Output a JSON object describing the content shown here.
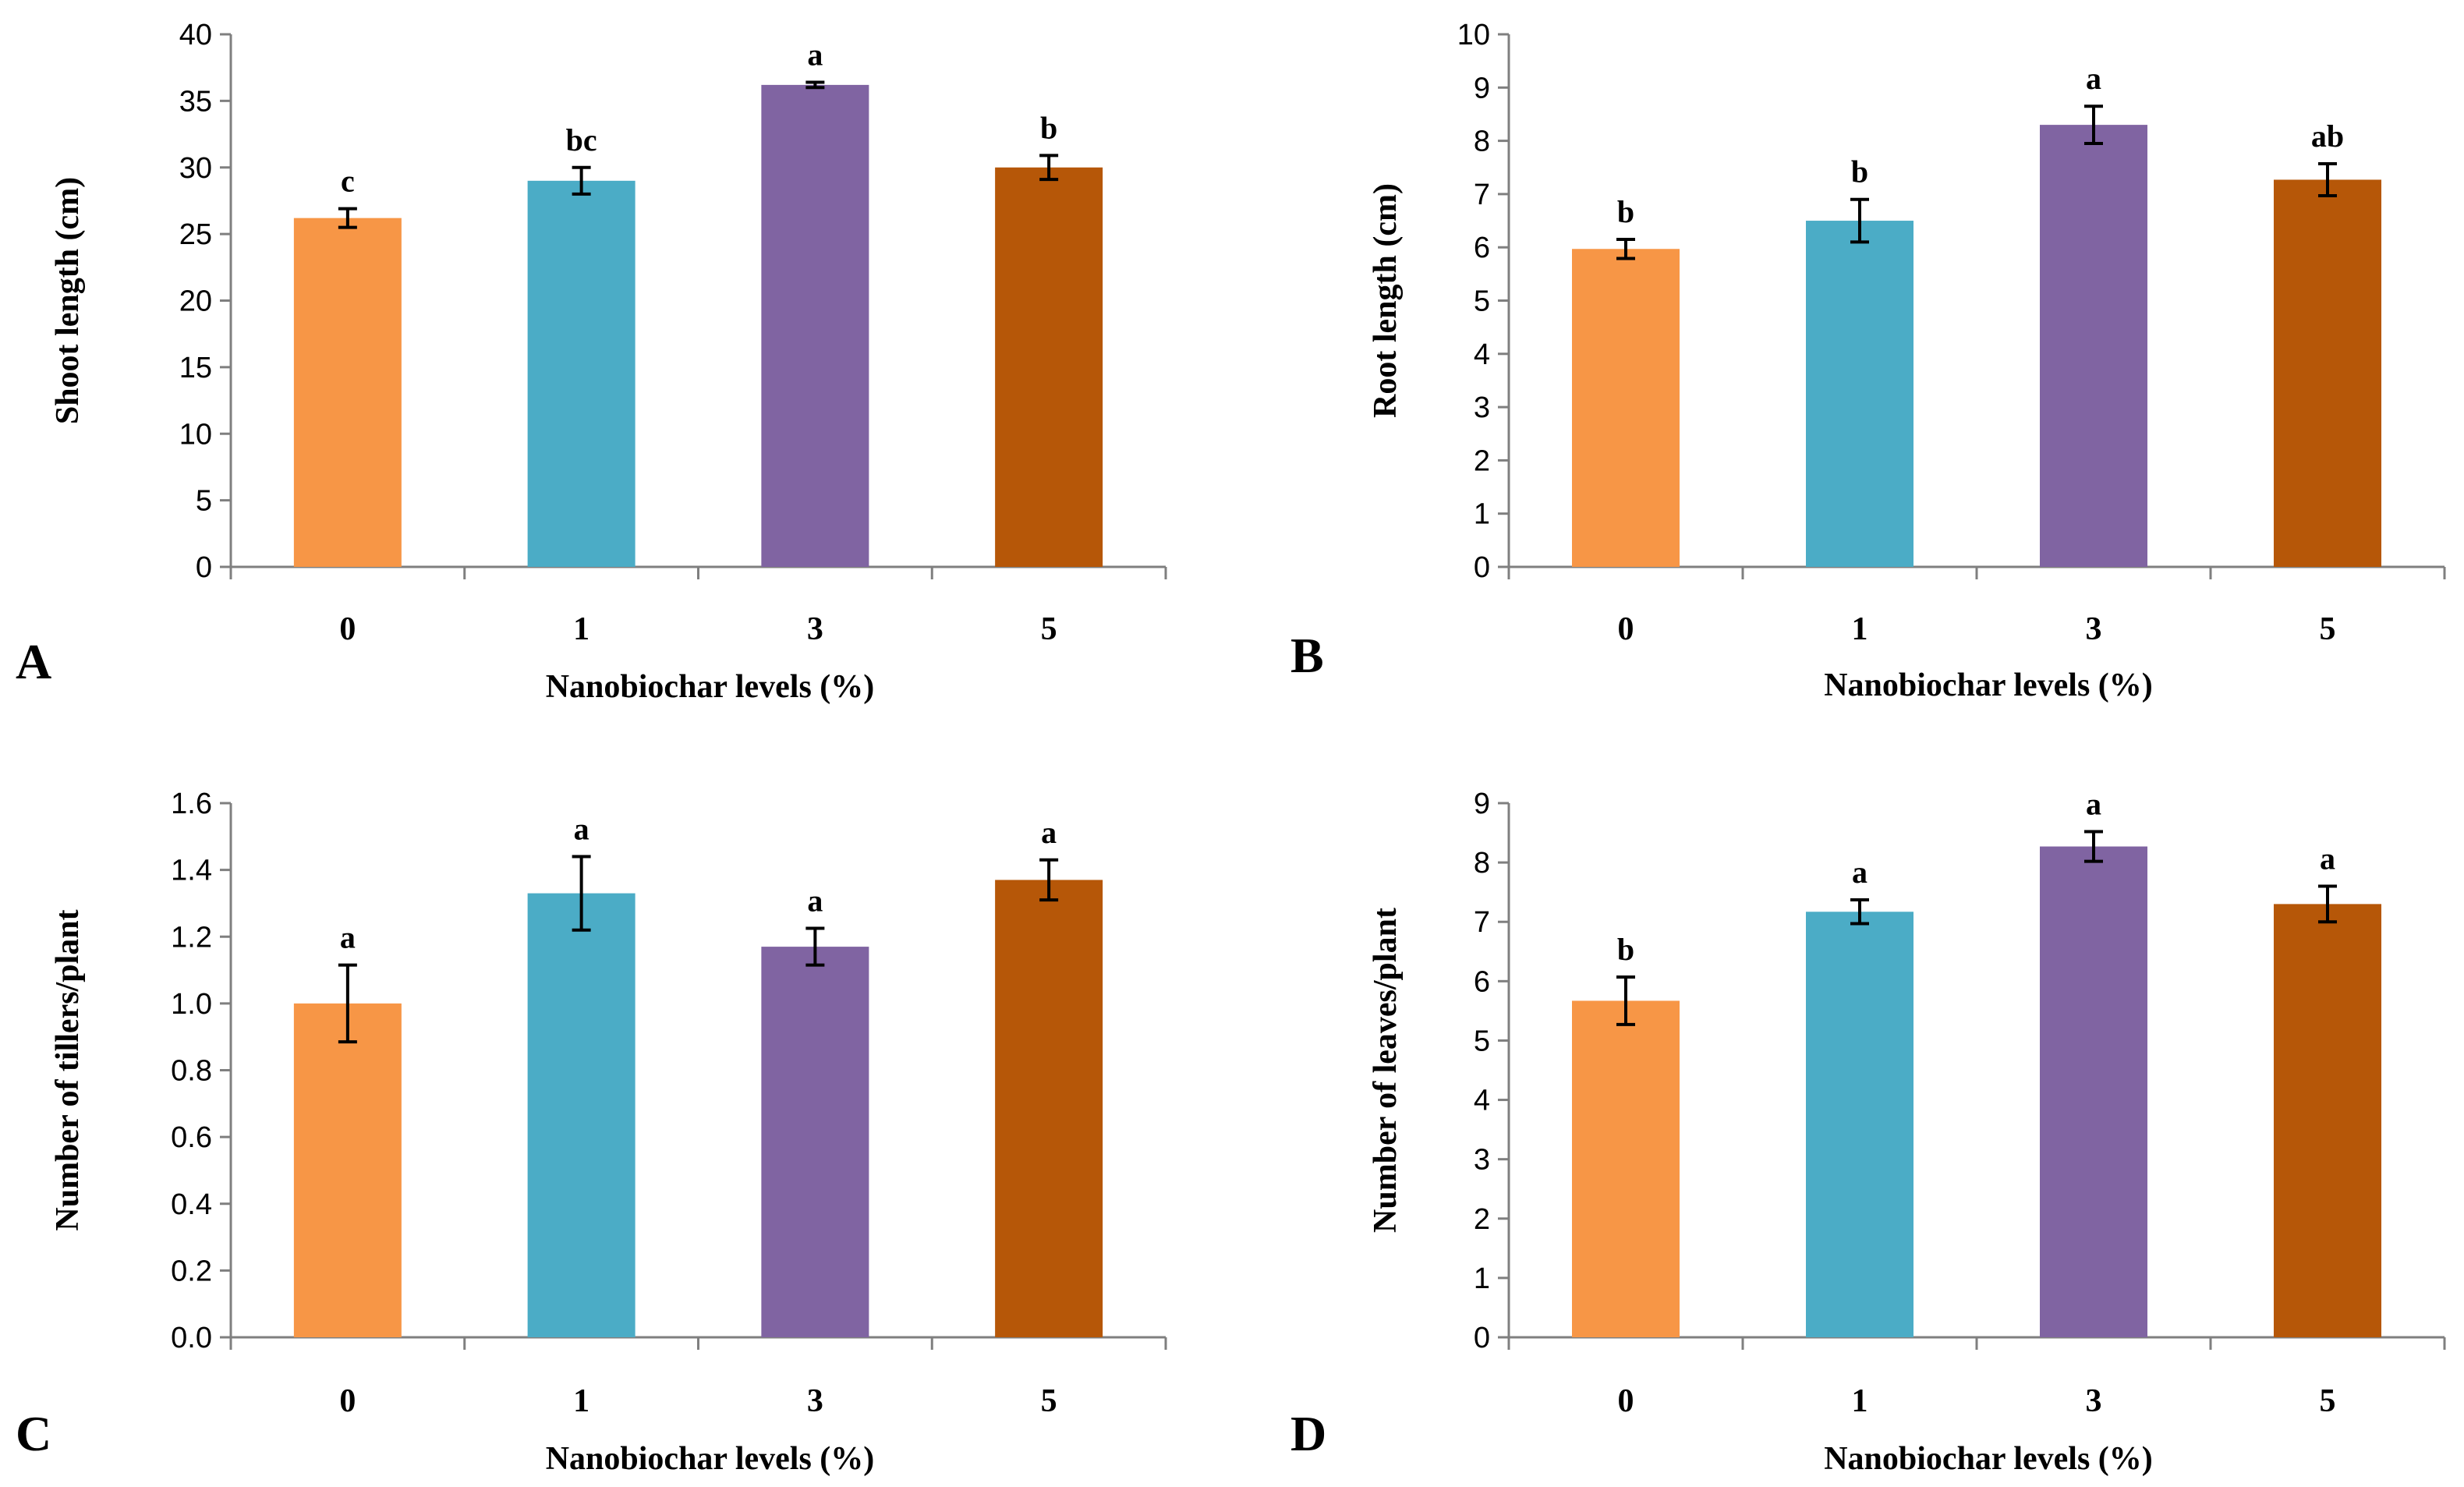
{
  "chart_data": [
    {
      "type": "bar",
      "panel": "A",
      "categories": [
        "0",
        "1",
        "3",
        "5"
      ],
      "values": [
        26.2,
        29.0,
        36.2,
        30.0
      ],
      "errors": [
        0.7,
        1.0,
        0.2,
        0.9
      ],
      "significance": [
        "c",
        "bc",
        "a",
        "b"
      ],
      "xlabel": "Nanobiochar levels (%)",
      "ylabel": "Shoot length (cm)",
      "ylim": [
        0,
        40
      ],
      "yticks": [
        "0",
        "5",
        "10",
        "15",
        "20",
        "25",
        "30",
        "35",
        "40"
      ],
      "grid": false
    },
    {
      "type": "bar",
      "panel": "B",
      "categories": [
        "0",
        "1",
        "3",
        "5"
      ],
      "values": [
        5.97,
        6.5,
        8.3,
        7.27
      ],
      "errors": [
        0.18,
        0.4,
        0.35,
        0.3
      ],
      "significance": [
        "b",
        "b",
        "a",
        "ab"
      ],
      "xlabel": "Nanobiochar levels (%)",
      "ylabel": "Root length (cm)",
      "ylim": [
        0,
        10
      ],
      "yticks": [
        "0",
        "1",
        "2",
        "3",
        "4",
        "5",
        "6",
        "7",
        "8",
        "9",
        "10"
      ],
      "grid": false
    },
    {
      "type": "bar",
      "panel": "C",
      "categories": [
        "0",
        "1",
        "3",
        "5"
      ],
      "values": [
        1.0,
        1.33,
        1.17,
        1.37
      ],
      "errors": [
        0.115,
        0.11,
        0.055,
        0.06
      ],
      "significance": [
        "a",
        "a",
        "a",
        "a"
      ],
      "xlabel": "Nanobiochar levels (%)",
      "ylabel": "Number of tillers/plant",
      "ylim": [
        0,
        1.6
      ],
      "yticks": [
        "0.0",
        "0.2",
        "0.4",
        "0.6",
        "0.8",
        "1.0",
        "1.2",
        "1.4",
        "1.6"
      ],
      "grid": false
    },
    {
      "type": "bar",
      "panel": "D",
      "categories": [
        "0",
        "1",
        "3",
        "5"
      ],
      "values": [
        5.67,
        7.17,
        8.27,
        7.3
      ],
      "errors": [
        0.4,
        0.2,
        0.25,
        0.3
      ],
      "significance": [
        "b",
        "a",
        "a",
        "a"
      ],
      "xlabel": "Nanobiochar levels (%)",
      "ylabel": "Number of leaves/plant",
      "ylim": [
        0,
        9
      ],
      "yticks": [
        "0",
        "1",
        "2",
        "3",
        "4",
        "5",
        "6",
        "7",
        "8",
        "9"
      ],
      "grid": false
    }
  ],
  "colors": {
    "bars": [
      "#f79646",
      "#4bacc6",
      "#8064a2",
      "#b65708"
    ],
    "axis": "#7f7f7f",
    "text": "#000000"
  }
}
